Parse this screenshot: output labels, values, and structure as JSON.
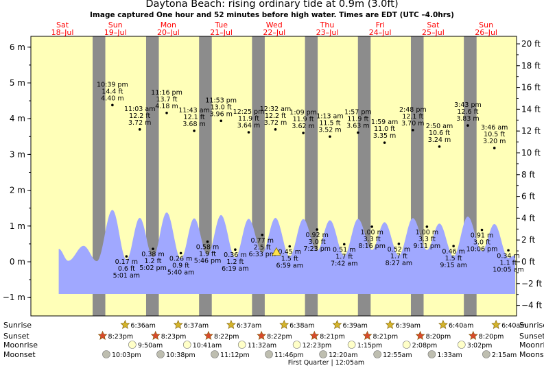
{
  "header": {
    "title": "Daytona Beach: rising  ordinary tide at 0.9m (3.0ft)",
    "subtitle": "Image captured One hour and 52 minutes before high water. Times are EDT (UTC –4.0hrs)"
  },
  "chart_data": {
    "type": "area",
    "title": "Daytona Beach: rising  ordinary tide at 0.9m (3.0ft)",
    "y_left": {
      "unit": "m",
      "range": [
        -1.3,
        6.2
      ],
      "ticks": [
        -1,
        0,
        1,
        2,
        3,
        4,
        5,
        6
      ],
      "tick_labels": [
        "−1 m",
        "0 m",
        "1 m",
        "2 m",
        "3 m",
        "4 m",
        "5 m",
        "6 m"
      ]
    },
    "y_right": {
      "unit": "ft",
      "range": [
        -4.3,
        20.3
      ],
      "ticks": [
        -4,
        -2,
        0,
        2,
        4,
        6,
        8,
        10,
        12,
        14,
        16,
        18,
        20
      ],
      "tick_labels": [
        "−4 ft",
        "−2 ft",
        "0 ft",
        "2 ft",
        "4 ft",
        "6 ft",
        "8 ft",
        "10 ft",
        "12 ft",
        "14 ft",
        "16 ft",
        "18 ft",
        "20 ft"
      ]
    },
    "days": [
      {
        "name": "Sat",
        "date": "18–Jul",
        "x": 0
      },
      {
        "name": "Sun",
        "date": "19–Jul",
        "x": 1
      },
      {
        "name": "Mon",
        "date": "20–Jul",
        "x": 2
      },
      {
        "name": "Tue",
        "date": "21–Jul",
        "x": 3
      },
      {
        "name": "Wed",
        "date": "22–Jul",
        "x": 4
      },
      {
        "name": "Thu",
        "date": "23–Jul",
        "x": 5
      },
      {
        "name": "Fri",
        "date": "24–Jul",
        "x": 6
      },
      {
        "name": "Sat",
        "date": "25–Jul",
        "x": 7
      },
      {
        "name": "Sun",
        "date": "26–Jul",
        "x": 8
      }
    ],
    "x_range_days": [
      -0.07,
      8.83
    ],
    "night": [
      [
        0.57,
        0.81
      ],
      [
        1.58,
        1.82
      ],
      [
        2.58,
        2.82
      ],
      [
        3.58,
        3.82
      ],
      [
        4.58,
        4.82
      ],
      [
        5.58,
        5.82
      ],
      [
        6.58,
        6.82
      ],
      [
        7.58,
        7.82
      ]
    ],
    "tides_high": [
      {
        "time": "10:39 pm",
        "ft": "14.4 ft",
        "m": "4.40 m",
        "t": 0.944,
        "h": 4.4
      },
      {
        "time": "11:03 am",
        "ft": "12.2 ft",
        "m": "3.72 m",
        "t": 1.46,
        "h": 3.72
      },
      {
        "time": "11:16 pm",
        "ft": "13.7 ft",
        "m": "4.18 m",
        "t": 1.969,
        "h": 4.18
      },
      {
        "time": "11:43 am",
        "ft": "12.1 ft",
        "m": "3.68 m",
        "t": 2.488,
        "h": 3.68
      },
      {
        "time": "11:53 pm",
        "ft": "13.0 ft",
        "m": "3.96 m",
        "t": 2.995,
        "h": 3.96
      },
      {
        "time": "12:25 pm",
        "ft": "11.9 ft",
        "m": "3.64 m",
        "t": 3.517,
        "h": 3.64
      },
      {
        "time": "12:32 am",
        "ft": "12.2 ft",
        "m": "3.72 m",
        "t": 4.022,
        "h": 3.72
      },
      {
        "time": "1:09 pm",
        "ft": "11.9 ft",
        "m": "3.62 m",
        "t": 4.548,
        "h": 3.62
      },
      {
        "time": "1:13 am",
        "ft": "11.5 ft",
        "m": "3.52 m",
        "t": 5.051,
        "h": 3.52
      },
      {
        "time": "1:57 pm",
        "ft": "11.9 ft",
        "m": "3.63 m",
        "t": 5.581,
        "h": 3.63
      },
      {
        "time": "1:59 am",
        "ft": "11.0 ft",
        "m": "3.35 m",
        "t": 6.083,
        "h": 3.35
      },
      {
        "time": "2:48 pm",
        "ft": "12.1 ft",
        "m": "3.70 m",
        "t": 6.617,
        "h": 3.7
      },
      {
        "time": "2:50 am",
        "ft": "10.6 ft",
        "m": "3.24 m",
        "t": 7.118,
        "h": 3.24
      },
      {
        "time": "3:43 pm",
        "ft": "12.6 ft",
        "m": "3.83 m",
        "t": 7.655,
        "h": 3.83
      },
      {
        "time": "3:46 am",
        "ft": "10.5 ft",
        "m": "3.20 m",
        "t": 8.157,
        "h": 3.2
      }
    ],
    "tides_low": [
      {
        "time": "5:01 am",
        "ft": "0.6 ft",
        "m": "0.17 m",
        "t": 1.209,
        "h": 0.17
      },
      {
        "time": "5:02 pm",
        "ft": "1.2 ft",
        "m": "0.38 m",
        "t": 1.71,
        "h": 0.38
      },
      {
        "time": "5:40 am",
        "ft": "0.9 ft",
        "m": "0.26 m",
        "t": 2.236,
        "h": 0.26
      },
      {
        "time": "5:46 pm",
        "ft": "1.9 ft",
        "m": "0.58 m",
        "t": 2.74,
        "h": 0.58
      },
      {
        "time": "6:19 am",
        "ft": "1.2 ft",
        "m": "0.36 m",
        "t": 3.263,
        "h": 0.36
      },
      {
        "time": "6:33 pm",
        "ft": "2.5 ft",
        "m": "0.77 m",
        "t": 3.773,
        "h": 0.77
      },
      {
        "time": "6:59 am",
        "ft": "1.5 ft",
        "m": "0.45 m",
        "t": 4.291,
        "h": 0.45
      },
      {
        "time": "7:23 pm",
        "ft": "3.0 ft",
        "m": "0.92 m",
        "t": 4.808,
        "h": 0.92
      },
      {
        "time": "7:42 am",
        "ft": "1.7 ft",
        "m": "0.51 m",
        "t": 5.321,
        "h": 0.51
      },
      {
        "time": "8:16 pm",
        "ft": "3.3 ft",
        "m": "1.00 m",
        "t": 5.844,
        "h": 1.0
      },
      {
        "time": "8:27 am",
        "ft": "1.7 ft",
        "m": "0.52 m",
        "t": 6.352,
        "h": 0.52
      },
      {
        "time": "9:11 pm",
        "ft": "3.3 ft",
        "m": "1.00 m",
        "t": 6.883,
        "h": 1.0
      },
      {
        "time": "9:15 am",
        "ft": "1.5 ft",
        "m": "0.46 m",
        "t": 7.385,
        "h": 0.46
      },
      {
        "time": "10:06 pm",
        "ft": "3.0 ft",
        "m": "0.91 m",
        "t": 7.921,
        "h": 0.91
      },
      {
        "time": "10:05 am",
        "ft": "1.1 ft",
        "m": "0.34 m",
        "t": 8.42,
        "h": 0.34
      }
    ],
    "current": {
      "t": 4.04,
      "h": 0.9
    },
    "curve_end_t": 8.55,
    "curve_end_h": 0.55
  },
  "rows": {
    "sunrise": {
      "label": "Sunrise",
      "times": [
        "6:36am",
        "6:37am",
        "6:37am",
        "6:38am",
        "6:39am",
        "6:39am",
        "6:40am",
        "6:40am"
      ],
      "t": [
        1.275,
        2.276,
        3.276,
        4.277,
        5.278,
        6.278,
        7.279,
        8.279
      ]
    },
    "sunset": {
      "label": "Sunset",
      "times": [
        "8:23pm",
        "8:23pm",
        "8:22pm",
        "8:22pm",
        "8:21pm",
        "8:21pm",
        "8:20pm",
        "8:20pm"
      ],
      "t": [
        0.849,
        1.849,
        2.849,
        3.849,
        4.848,
        5.848,
        6.847,
        7.847
      ]
    },
    "moonrise": {
      "label": "Moonrise",
      "times": [
        "9:50am",
        "10:41am",
        "11:32am",
        "12:23pm",
        "1:15pm",
        "2:08pm",
        "3:02pm"
      ],
      "t": [
        1.41,
        2.445,
        3.481,
        4.516,
        5.552,
        6.589,
        7.627
      ]
    },
    "moonset": {
      "label": "Moonset",
      "times": [
        "10:03pm",
        "10:38pm",
        "11:12pm",
        "11:46pm",
        "12:20am",
        "12:55am",
        "1:33am",
        "2:15am"
      ],
      "t": [
        0.919,
        1.943,
        2.967,
        3.99,
        5.014,
        6.038,
        7.065,
        8.094
      ]
    },
    "first_quarter": "First Quarter | 12:05am"
  },
  "colors": {
    "day_bg": "#ffffb8",
    "night_bg": "#8c8c8c",
    "water": "#a0a8ff",
    "day_label": "#ff0000",
    "sun_star": "#d4b42c",
    "sunset_star": "#d84a2c",
    "moonrise": "#ffffc8",
    "moonset": "#bebeb0"
  }
}
